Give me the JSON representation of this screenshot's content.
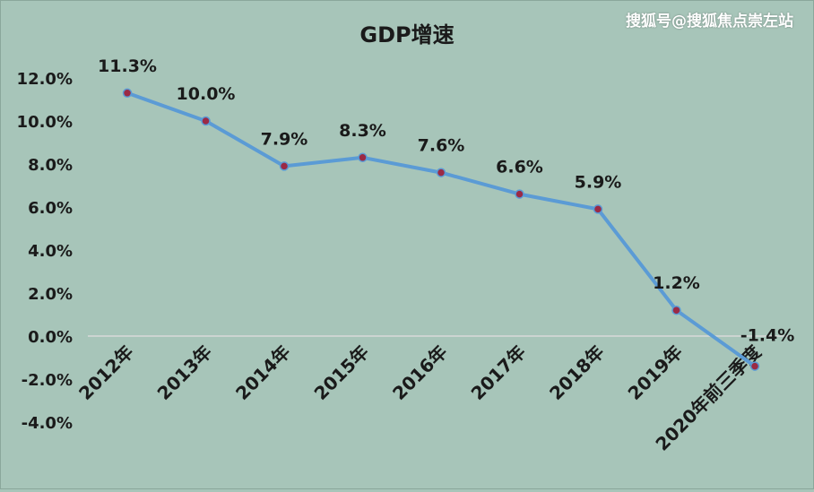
{
  "watermark": "搜狐号@搜狐焦点崇左站",
  "chart_data": {
    "type": "line",
    "title": "GDP增速",
    "categories": [
      "2012年",
      "2013年",
      "2014年",
      "2015年",
      "2016年",
      "2017年",
      "2018年",
      "2019年",
      "2020年前三季度"
    ],
    "values": [
      11.3,
      10.0,
      7.9,
      8.3,
      7.6,
      6.6,
      5.9,
      1.2,
      -1.4
    ],
    "data_labels": [
      "11.3%",
      "10.0%",
      "7.9%",
      "8.3%",
      "7.6%",
      "6.6%",
      "5.9%",
      "1.2%",
      "-1.4%"
    ],
    "yticks": [
      12,
      10,
      8,
      6,
      4,
      2,
      0,
      -2,
      -4
    ],
    "ytick_labels": [
      "12.0%",
      "10.0%",
      "8.0%",
      "6.0%",
      "4.0%",
      "2.0%",
      "0.0%",
      "-2.0%",
      "-4.0%"
    ],
    "ylim": [
      -4,
      12
    ],
    "grid": false,
    "legend": "none",
    "colors": {
      "background": "#a7c5b9",
      "line": "#5b9bd5",
      "marker": "#9b2a45",
      "text": "#1a1a1a"
    }
  }
}
